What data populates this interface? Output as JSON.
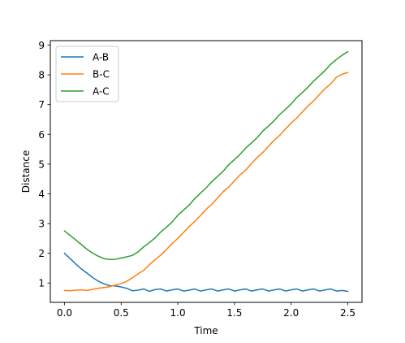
{
  "chart_data": {
    "type": "line",
    "xlabel": "Time",
    "ylabel": "Distance",
    "xlim": [
      -0.125,
      2.625
    ],
    "ylim": [
      0.35,
      9.15
    ],
    "xticks": [
      0.0,
      0.5,
      1.0,
      1.5,
      2.0,
      2.5
    ],
    "xtick_labels": [
      "0.0",
      "0.5",
      "1.0",
      "1.5",
      "2.0",
      "2.5"
    ],
    "yticks": [
      1,
      2,
      3,
      4,
      5,
      6,
      7,
      8,
      9
    ],
    "ytick_labels": [
      "1",
      "2",
      "3",
      "4",
      "5",
      "6",
      "7",
      "8",
      "9"
    ],
    "grid": false,
    "legend_position": "upper-left",
    "series": [
      {
        "name": "A-B",
        "color": "#1f77b4",
        "points": [
          [
            0.0,
            2.0
          ],
          [
            0.05,
            1.82
          ],
          [
            0.1,
            1.64
          ],
          [
            0.15,
            1.47
          ],
          [
            0.2,
            1.33
          ],
          [
            0.25,
            1.18
          ],
          [
            0.3,
            1.06
          ],
          [
            0.35,
            0.97
          ],
          [
            0.4,
            0.91
          ],
          [
            0.45,
            0.9
          ],
          [
            0.5,
            0.87
          ],
          [
            0.55,
            0.82
          ],
          [
            0.6,
            0.74
          ],
          [
            0.65,
            0.76
          ],
          [
            0.7,
            0.8
          ],
          [
            0.75,
            0.72
          ],
          [
            0.8,
            0.78
          ],
          [
            0.85,
            0.8
          ],
          [
            0.9,
            0.73
          ],
          [
            0.95,
            0.77
          ],
          [
            1.0,
            0.8
          ],
          [
            1.05,
            0.73
          ],
          [
            1.1,
            0.76
          ],
          [
            1.15,
            0.8
          ],
          [
            1.2,
            0.73
          ],
          [
            1.25,
            0.77
          ],
          [
            1.3,
            0.8
          ],
          [
            1.35,
            0.73
          ],
          [
            1.4,
            0.77
          ],
          [
            1.45,
            0.8
          ],
          [
            1.5,
            0.73
          ],
          [
            1.55,
            0.77
          ],
          [
            1.6,
            0.8
          ],
          [
            1.65,
            0.73
          ],
          [
            1.7,
            0.77
          ],
          [
            1.75,
            0.8
          ],
          [
            1.8,
            0.73
          ],
          [
            1.85,
            0.77
          ],
          [
            1.9,
            0.8
          ],
          [
            1.95,
            0.73
          ],
          [
            2.0,
            0.77
          ],
          [
            2.05,
            0.8
          ],
          [
            2.1,
            0.73
          ],
          [
            2.15,
            0.77
          ],
          [
            2.2,
            0.8
          ],
          [
            2.25,
            0.73
          ],
          [
            2.3,
            0.77
          ],
          [
            2.35,
            0.8
          ],
          [
            2.4,
            0.73
          ],
          [
            2.45,
            0.75
          ],
          [
            2.5,
            0.72
          ]
        ]
      },
      {
        "name": "B-C",
        "color": "#ff7f0e",
        "points": [
          [
            0.0,
            0.75
          ],
          [
            0.05,
            0.74
          ],
          [
            0.1,
            0.76
          ],
          [
            0.15,
            0.77
          ],
          [
            0.2,
            0.75
          ],
          [
            0.25,
            0.79
          ],
          [
            0.3,
            0.82
          ],
          [
            0.35,
            0.85
          ],
          [
            0.4,
            0.88
          ],
          [
            0.45,
            0.93
          ],
          [
            0.5,
            0.98
          ],
          [
            0.55,
            1.06
          ],
          [
            0.6,
            1.18
          ],
          [
            0.65,
            1.31
          ],
          [
            0.7,
            1.43
          ],
          [
            0.75,
            1.62
          ],
          [
            0.8,
            1.79
          ],
          [
            0.85,
            1.94
          ],
          [
            0.9,
            2.13
          ],
          [
            0.95,
            2.33
          ],
          [
            1.0,
            2.5
          ],
          [
            1.05,
            2.7
          ],
          [
            1.1,
            2.9
          ],
          [
            1.15,
            3.07
          ],
          [
            1.2,
            3.27
          ],
          [
            1.25,
            3.48
          ],
          [
            1.3,
            3.65
          ],
          [
            1.35,
            3.86
          ],
          [
            1.4,
            4.07
          ],
          [
            1.45,
            4.23
          ],
          [
            1.5,
            4.44
          ],
          [
            1.55,
            4.64
          ],
          [
            1.6,
            4.8
          ],
          [
            1.65,
            5.02
          ],
          [
            1.7,
            5.22
          ],
          [
            1.75,
            5.39
          ],
          [
            1.8,
            5.6
          ],
          [
            1.85,
            5.8
          ],
          [
            1.9,
            5.97
          ],
          [
            1.95,
            6.18
          ],
          [
            2.0,
            6.38
          ],
          [
            2.05,
            6.55
          ],
          [
            2.1,
            6.76
          ],
          [
            2.15,
            6.96
          ],
          [
            2.2,
            7.13
          ],
          [
            2.25,
            7.34
          ],
          [
            2.3,
            7.54
          ],
          [
            2.35,
            7.7
          ],
          [
            2.4,
            7.92
          ],
          [
            2.45,
            8.02
          ],
          [
            2.5,
            8.08
          ]
        ]
      },
      {
        "name": "A-C",
        "color": "#2ca02c",
        "points": [
          [
            0.0,
            2.75
          ],
          [
            0.05,
            2.6
          ],
          [
            0.1,
            2.45
          ],
          [
            0.15,
            2.29
          ],
          [
            0.2,
            2.13
          ],
          [
            0.25,
            2.0
          ],
          [
            0.3,
            1.9
          ],
          [
            0.35,
            1.82
          ],
          [
            0.4,
            1.79
          ],
          [
            0.45,
            1.8
          ],
          [
            0.5,
            1.84
          ],
          [
            0.55,
            1.88
          ],
          [
            0.6,
            1.93
          ],
          [
            0.65,
            2.05
          ],
          [
            0.7,
            2.22
          ],
          [
            0.75,
            2.36
          ],
          [
            0.8,
            2.52
          ],
          [
            0.85,
            2.72
          ],
          [
            0.9,
            2.88
          ],
          [
            0.95,
            3.05
          ],
          [
            1.0,
            3.28
          ],
          [
            1.05,
            3.45
          ],
          [
            1.1,
            3.62
          ],
          [
            1.15,
            3.84
          ],
          [
            1.2,
            4.02
          ],
          [
            1.25,
            4.2
          ],
          [
            1.3,
            4.41
          ],
          [
            1.35,
            4.58
          ],
          [
            1.4,
            4.76
          ],
          [
            1.45,
            4.98
          ],
          [
            1.5,
            5.15
          ],
          [
            1.55,
            5.33
          ],
          [
            1.6,
            5.54
          ],
          [
            1.65,
            5.71
          ],
          [
            1.7,
            5.89
          ],
          [
            1.75,
            6.11
          ],
          [
            1.8,
            6.28
          ],
          [
            1.85,
            6.46
          ],
          [
            1.9,
            6.67
          ],
          [
            1.95,
            6.84
          ],
          [
            2.0,
            7.02
          ],
          [
            2.05,
            7.24
          ],
          [
            2.1,
            7.41
          ],
          [
            2.15,
            7.59
          ],
          [
            2.2,
            7.8
          ],
          [
            2.25,
            7.97
          ],
          [
            2.3,
            8.15
          ],
          [
            2.35,
            8.36
          ],
          [
            2.4,
            8.52
          ],
          [
            2.45,
            8.66
          ],
          [
            2.5,
            8.78
          ]
        ]
      }
    ]
  }
}
